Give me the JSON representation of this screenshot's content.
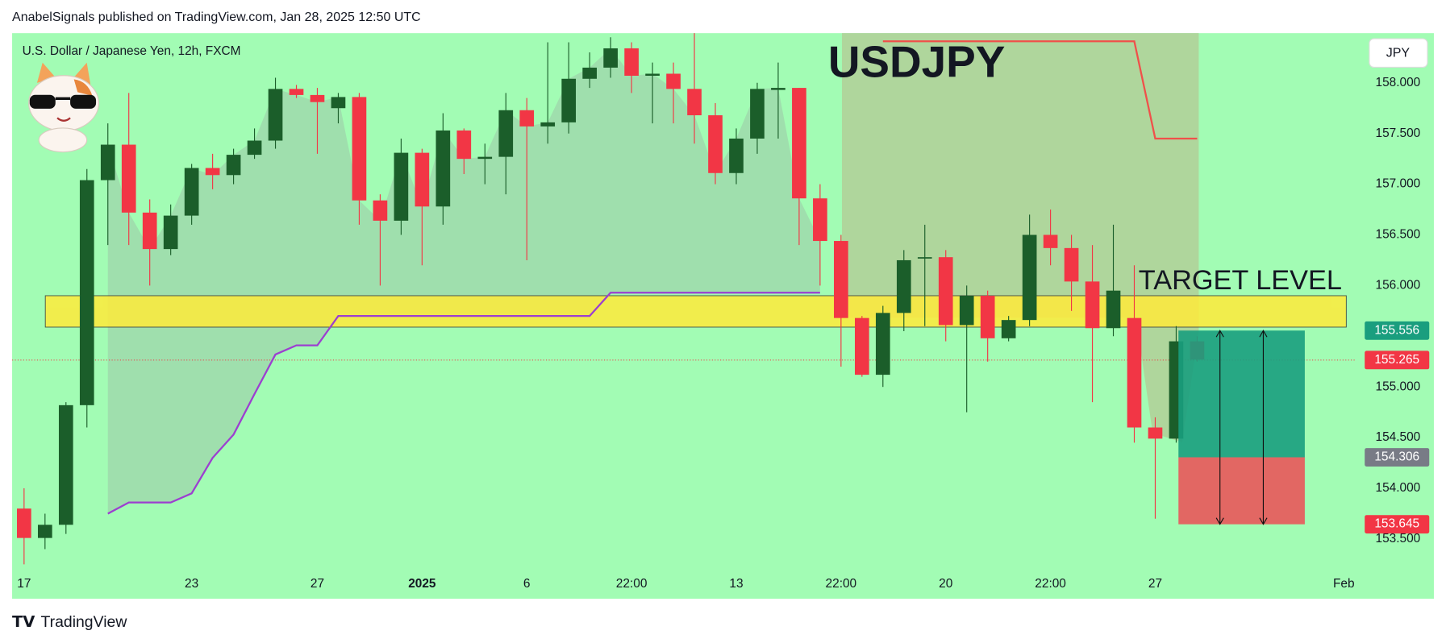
{
  "header": {
    "publisher": "AnabelSignals published on TradingView.com, Jan 28, 2025 12:50 UTC",
    "footer": "TradingView"
  },
  "chart_data": {
    "type": "candlestick",
    "title": "USDJPY",
    "subtitle": "U.S. Dollar / Japanese Yen, 12h, FXCM",
    "currency": "JPY",
    "categories": [
      "17",
      null,
      null,
      null,
      null,
      null,
      null,
      null,
      "23",
      null,
      null,
      null,
      null,
      null,
      "27",
      null,
      null,
      null,
      null,
      "2025",
      null,
      null,
      null,
      null,
      "6",
      null,
      null,
      null,
      null,
      "22:00",
      null,
      null,
      null,
      null,
      "13",
      null,
      null,
      null,
      null,
      "22:00",
      null,
      null,
      null,
      null,
      "20",
      null,
      null,
      null,
      null,
      "22:00",
      null,
      null,
      null,
      null,
      "27",
      null,
      null,
      null,
      null,
      null,
      null,
      null,
      null,
      "Feb"
    ],
    "open": [
      153.8,
      153.51,
      153.64,
      154.82,
      157.04,
      157.39,
      156.72,
      156.36,
      156.69,
      157.16,
      157.09,
      157.29,
      157.43,
      157.94,
      157.88,
      157.75,
      157.86,
      156.84,
      156.64,
      157.31,
      156.78,
      157.53,
      157.25,
      157.27,
      157.73,
      157.57,
      157.61,
      158.04,
      158.15,
      158.34,
      158.07,
      158.09,
      157.94,
      157.68,
      157.11,
      157.45,
      157.93,
      157.95,
      156.86,
      156.44,
      155.68,
      155.12,
      155.73,
      156.27,
      156.28,
      155.61,
      155.9,
      155.48,
      155.66,
      156.5,
      156.37,
      156.04,
      155.58,
      155.68,
      154.6,
      154.49,
      155.45,
      null,
      null,
      null,
      null,
      null,
      null,
      null
    ],
    "high": [
      154.0,
      153.75,
      154.85,
      157.15,
      157.6,
      157.9,
      156.85,
      156.8,
      157.2,
      157.3,
      157.35,
      157.55,
      158.05,
      157.98,
      157.95,
      157.9,
      157.9,
      156.9,
      157.45,
      157.35,
      157.7,
      157.55,
      157.4,
      157.9,
      157.85,
      158.4,
      158.4,
      158.3,
      158.45,
      158.4,
      158.2,
      158.2,
      158.5,
      157.8,
      157.55,
      158.0,
      158.2,
      157.95,
      157.0,
      156.5,
      155.7,
      155.8,
      156.35,
      156.6,
      156.35,
      156.0,
      155.95,
      155.7,
      156.7,
      156.75,
      156.5,
      156.4,
      156.6,
      156.2,
      154.7,
      155.6,
      155.5,
      null,
      null,
      null,
      null,
      null,
      null,
      null
    ],
    "low": [
      153.25,
      153.4,
      153.55,
      154.6,
      156.4,
      156.4,
      156.0,
      156.3,
      156.6,
      156.95,
      157.0,
      157.25,
      157.35,
      157.85,
      157.3,
      157.6,
      156.6,
      156.0,
      156.5,
      156.2,
      156.6,
      157.1,
      157.0,
      156.9,
      156.25,
      157.4,
      157.5,
      157.95,
      158.05,
      157.9,
      157.6,
      157.6,
      157.4,
      157.0,
      157.0,
      157.3,
      157.45,
      156.4,
      156.0,
      155.2,
      155.1,
      155.0,
      155.55,
      155.6,
      155.45,
      154.75,
      155.25,
      155.45,
      155.6,
      156.2,
      155.75,
      154.85,
      155.5,
      154.45,
      153.7,
      154.45,
      155.25,
      null,
      null,
      null,
      null,
      null,
      null,
      null
    ],
    "close": [
      153.51,
      153.64,
      154.82,
      157.04,
      157.39,
      156.72,
      156.36,
      156.69,
      157.16,
      157.09,
      157.29,
      157.43,
      157.94,
      157.88,
      157.81,
      157.86,
      156.84,
      156.64,
      157.31,
      156.78,
      157.53,
      157.25,
      157.27,
      157.73,
      157.57,
      157.61,
      158.04,
      158.15,
      158.34,
      158.07,
      158.09,
      157.94,
      157.68,
      157.11,
      157.45,
      157.94,
      157.95,
      156.86,
      156.44,
      155.68,
      155.12,
      155.73,
      156.25,
      156.28,
      155.61,
      155.9,
      155.48,
      155.66,
      156.5,
      156.37,
      156.04,
      155.58,
      155.95,
      154.6,
      154.49,
      155.45,
      155.27,
      null,
      null,
      null,
      null,
      null,
      null,
      null
    ],
    "up_color": "#1b5e2a",
    "down_color": "#f23645",
    "ylim": [
      152.91,
      158.49
    ],
    "yticks": [
      {
        "value": 153.5,
        "label": "153.500"
      },
      {
        "value": 154,
        "label": "154.000"
      },
      {
        "value": 154.5,
        "label": "154.500"
      },
      {
        "value": 155,
        "label": "155.000"
      },
      {
        "value": 155.5,
        "label": "155.500"
      },
      {
        "value": 156,
        "label": "156.000"
      },
      {
        "value": 156.5,
        "label": "156.500"
      },
      {
        "value": 157,
        "label": "157.000"
      },
      {
        "value": 157.5,
        "label": "157.500"
      },
      {
        "value": 158,
        "label": "158.000"
      }
    ],
    "lines": [
      {
        "color": "#9c3fd0",
        "values": [
          null,
          null,
          null,
          null,
          153.75,
          153.86,
          153.86,
          153.86,
          153.95,
          154.3,
          154.53,
          154.93,
          155.32,
          155.41,
          155.41,
          155.7,
          155.7,
          155.7,
          155.7,
          155.7,
          155.7,
          155.7,
          155.7,
          155.7,
          155.7,
          155.7,
          155.7,
          155.7,
          155.93,
          155.93,
          155.93,
          155.93,
          155.93,
          155.93,
          155.93,
          155.93,
          155.93,
          155.93,
          155.93,
          null,
          null,
          null,
          null,
          null,
          null,
          null,
          null,
          null,
          null,
          null,
          null,
          null,
          null,
          null,
          null,
          null,
          null,
          null,
          null,
          null,
          null,
          null,
          null,
          null
        ]
      },
      {
        "color": "#f0504a",
        "values": [
          null,
          null,
          null,
          null,
          null,
          null,
          null,
          null,
          null,
          null,
          null,
          null,
          null,
          null,
          null,
          null,
          null,
          null,
          null,
          null,
          null,
          null,
          null,
          null,
          null,
          null,
          null,
          null,
          null,
          null,
          null,
          null,
          null,
          null,
          null,
          null,
          null,
          null,
          null,
          null,
          null,
          158.41,
          158.41,
          158.41,
          158.41,
          158.41,
          158.41,
          158.41,
          158.41,
          158.41,
          158.41,
          158.41,
          158.41,
          158.41,
          157.45,
          157.45,
          157.45,
          null,
          null,
          null,
          null,
          null,
          null,
          null
        ]
      }
    ],
    "zone": {
      "label": "TARGET LEVEL",
      "top": 155.9,
      "bottom": 155.59,
      "color": "#ffeb3b"
    },
    "position": {
      "target": 155.556,
      "entry": 154.306,
      "stop": 153.645,
      "profit_color": "#1a9e7e",
      "loss_color": "#e9565a"
    },
    "last_price": 155.265
  }
}
